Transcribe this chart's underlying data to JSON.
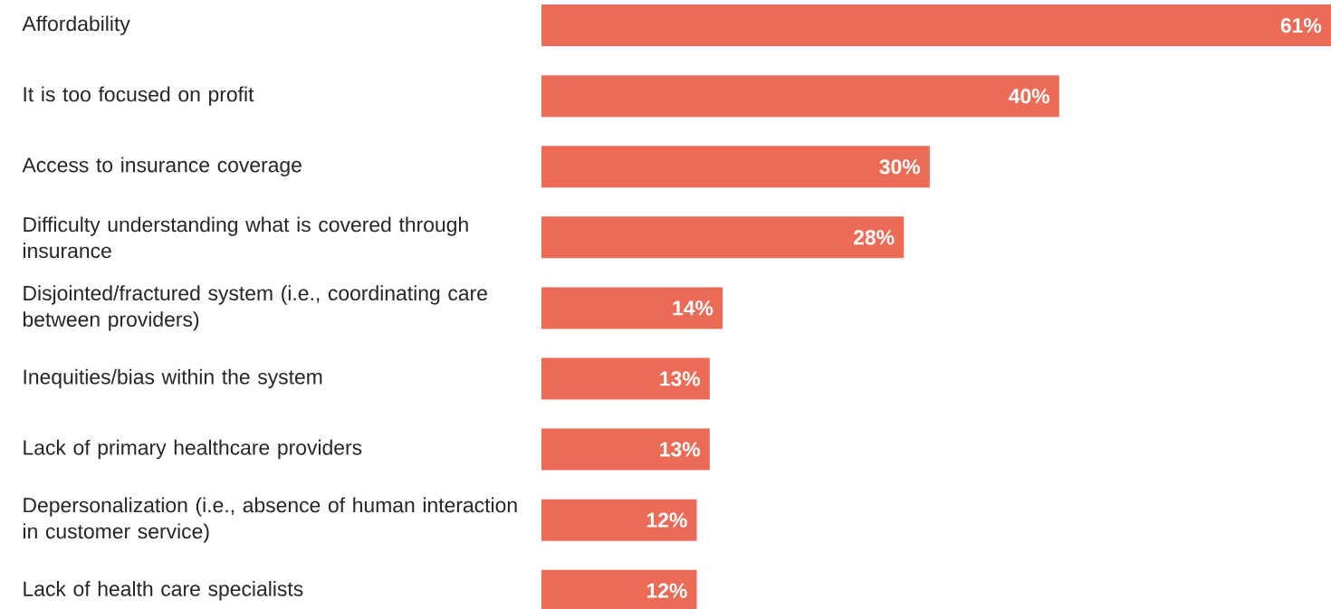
{
  "chart_data": {
    "type": "bar",
    "orientation": "horizontal",
    "categories": [
      "Affordability",
      "It is too focused on profit",
      "Access to insurance coverage",
      "Difficulty understanding what is covered through insurance",
      "Disjointed/fractured system (i.e., coordinating care between providers)",
      "Inequities/bias within the system",
      "Lack of primary healthcare providers",
      "Depersonalization (i.e., absence of human interaction in customer service)",
      "Lack of health care specialists"
    ],
    "values": [
      61,
      40,
      30,
      28,
      14,
      13,
      13,
      12,
      12
    ],
    "value_labels": [
      "61%",
      "40%",
      "30%",
      "28%",
      "14%",
      "13%",
      "13%",
      "12%",
      "12%"
    ],
    "color": "#ec6b56",
    "xlim": [
      0,
      61
    ],
    "tick_labels": "y"
  }
}
